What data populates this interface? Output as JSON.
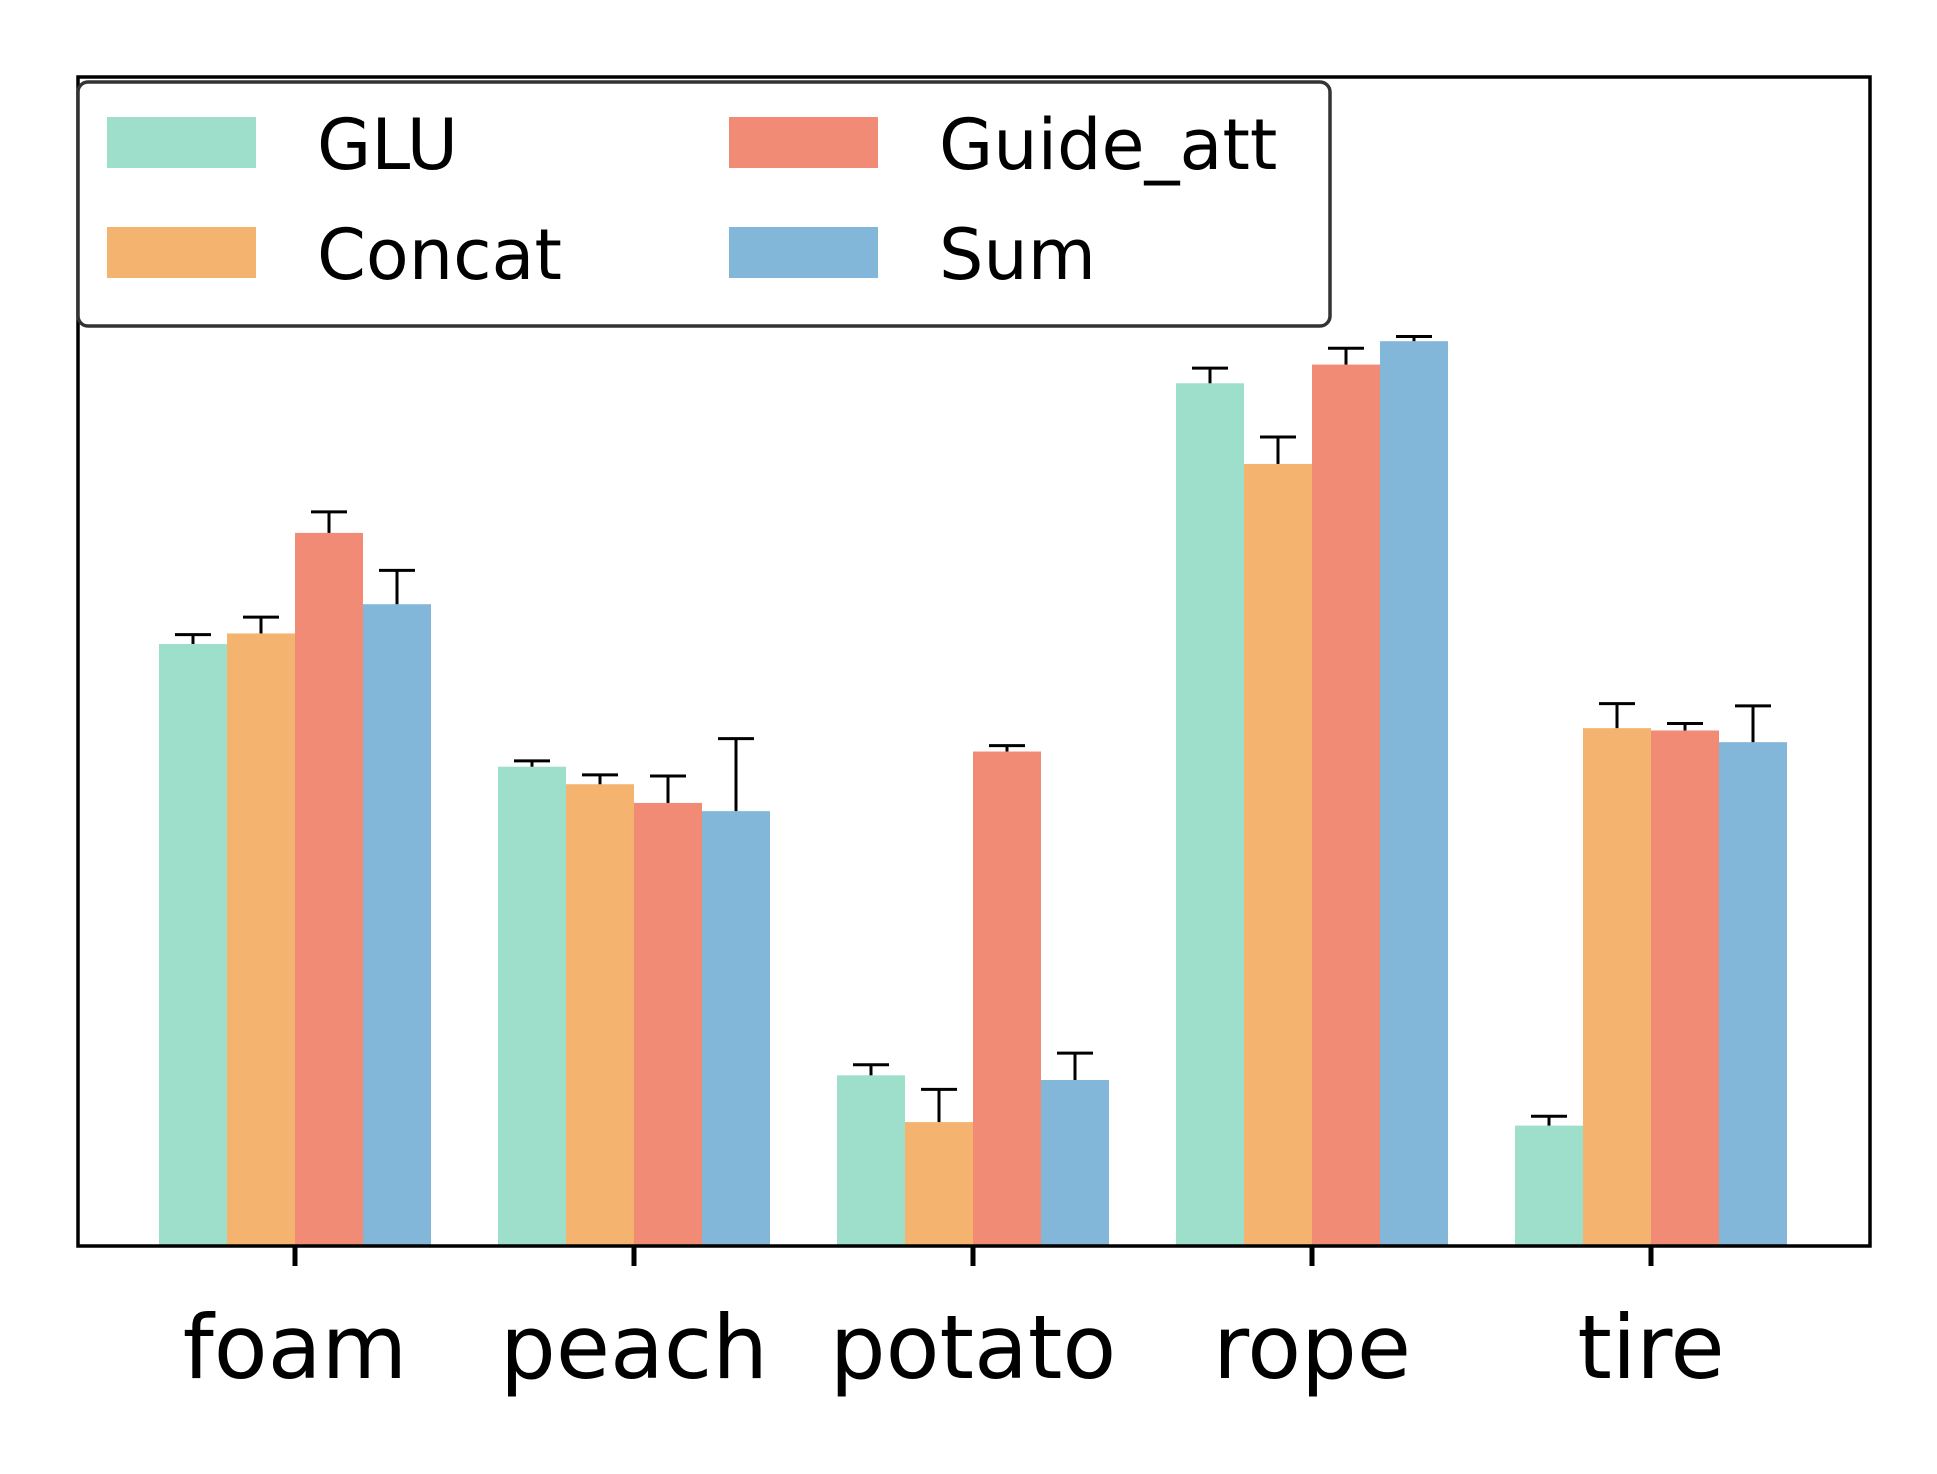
{
  "chart_data": {
    "type": "bar",
    "title": "",
    "xlabel": "",
    "ylabel": "",
    "categories": [
      "foam",
      "peach",
      "potato",
      "rope",
      "tire"
    ],
    "ylim": [
      0,
      100
    ],
    "y_ticks_visible": false,
    "grid": false,
    "legend": {
      "placement": "top-left",
      "columns": 2
    },
    "error_bars": true,
    "series": [
      {
        "name": "GLU",
        "color": "#9ddfca",
        "values": [
          51.5,
          41.0,
          14.6,
          73.8,
          10.3
        ],
        "errors": [
          0.8,
          0.5,
          0.9,
          1.3,
          0.8
        ]
      },
      {
        "name": "Concat",
        "color": "#f4b46f",
        "values": [
          52.4,
          39.5,
          10.6,
          66.9,
          44.3
        ],
        "errors": [
          1.4,
          0.8,
          2.8,
          2.3,
          2.1
        ]
      },
      {
        "name": "Guide_att",
        "color": "#f28b75",
        "values": [
          61.0,
          37.9,
          42.3,
          75.4,
          44.1
        ],
        "errors": [
          1.8,
          2.3,
          0.5,
          1.4,
          0.6
        ]
      },
      {
        "name": "Sum",
        "color": "#82b7da",
        "values": [
          54.9,
          37.2,
          14.2,
          77.4,
          43.1
        ],
        "errors": [
          2.9,
          6.2,
          2.3,
          0.4,
          3.1
        ]
      }
    ]
  }
}
